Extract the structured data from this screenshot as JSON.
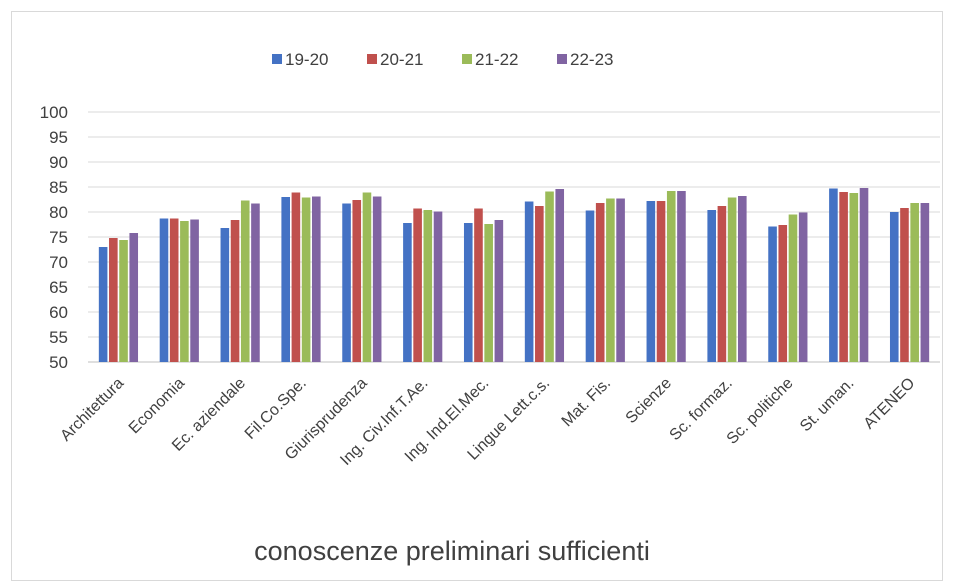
{
  "chart_data": {
    "type": "bar",
    "title": "conoscenze preliminari sufficienti",
    "xlabel": "",
    "ylabel": "",
    "ylim": [
      50,
      100
    ],
    "yticks": [
      50,
      55,
      60,
      65,
      70,
      75,
      80,
      85,
      90,
      95,
      100
    ],
    "grid": true,
    "legend_position": "top",
    "categories": [
      "Architettura",
      "Economia",
      "Ec. aziendale",
      "Fil.Co.Spe.",
      "Giurisprudenza",
      "Ing. Civ.Inf.T.Ae.",
      "Ing. Ind.El.Mec.",
      "Lingue Lett.c.s.",
      "Mat. Fis.",
      "Scienze",
      "Sc. formaz.",
      "Sc. politiche",
      "St. uman.",
      "ATENEO"
    ],
    "series": [
      {
        "name": "19-20",
        "color": "#4472c4",
        "values": [
          73.0,
          78.7,
          76.8,
          83.0,
          81.7,
          77.8,
          77.8,
          82.1,
          80.3,
          82.2,
          80.4,
          77.1,
          84.7,
          80.0
        ]
      },
      {
        "name": "20-21",
        "color": "#c0504d",
        "values": [
          74.8,
          78.7,
          78.4,
          83.9,
          82.4,
          80.7,
          80.7,
          81.2,
          81.8,
          82.2,
          81.2,
          77.4,
          84.0,
          80.8
        ]
      },
      {
        "name": "21-22",
        "color": "#9bbb59",
        "values": [
          74.4,
          78.2,
          82.3,
          82.9,
          83.9,
          80.4,
          77.6,
          84.1,
          82.7,
          84.2,
          82.9,
          79.5,
          83.8,
          81.8
        ]
      },
      {
        "name": "22-23",
        "color": "#8064a2",
        "values": [
          75.8,
          78.5,
          81.7,
          83.1,
          83.1,
          80.1,
          78.4,
          84.6,
          82.7,
          84.2,
          83.2,
          79.9,
          84.8,
          81.8
        ]
      }
    ]
  },
  "colors": {
    "gridline": "#d9d9d9",
    "axis": "#bfbfbf",
    "text": "#404040"
  }
}
